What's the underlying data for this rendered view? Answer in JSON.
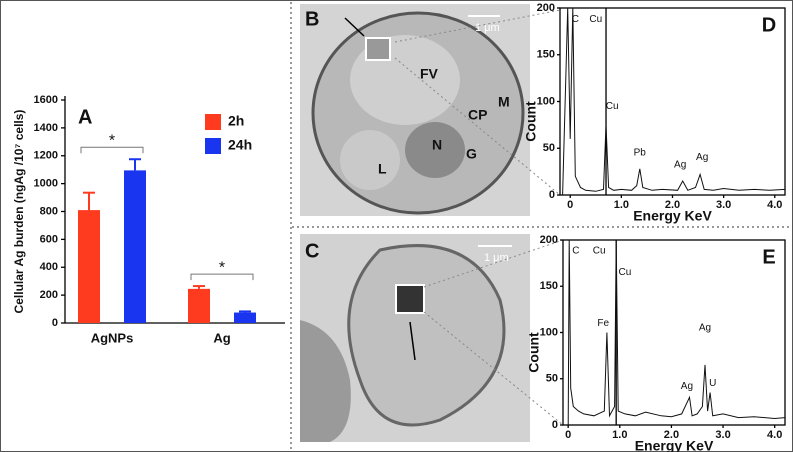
{
  "chart_data": [
    {
      "type": "bar",
      "panel": "A",
      "y_label": "Cellular Ag burden (ngAg /10⁷ cells)",
      "categories": [
        "AgNPs",
        "Ag"
      ],
      "series": [
        {
          "name": "2h",
          "color": "#ff3b1f",
          "values": [
            810,
            245
          ],
          "errors": [
            125,
            20
          ]
        },
        {
          "name": "24h",
          "color": "#1a35f0",
          "values": [
            1095,
            75
          ],
          "errors": [
            80,
            8
          ]
        }
      ],
      "significance": [
        "*",
        "*"
      ],
      "ylim": [
        0,
        1600
      ],
      "yticks": [
        0,
        200,
        400,
        600,
        800,
        1000,
        1200,
        1400,
        1600
      ],
      "legend": "upper right"
    },
    {
      "type": "line",
      "panel": "D",
      "x_label": "Energy KeV",
      "y_label": "Count",
      "xlim": [
        -0.2,
        4.2
      ],
      "xticks": [
        {
          "value": 0,
          "label": "0"
        },
        {
          "value": 1,
          "label": "1.0"
        },
        {
          "value": 2,
          "label": "2.0"
        },
        {
          "value": 3,
          "label": "3.0"
        },
        {
          "value": 4,
          "label": "4.0"
        }
      ],
      "ylim": [
        0,
        200
      ],
      "yticks": [
        0,
        50,
        100,
        150,
        200
      ],
      "marker_lines": [
        0.7
      ],
      "series": [
        {
          "color": "#111111",
          "x": [
            -0.15,
            -0.05,
            0,
            0.05,
            0.1,
            0.2,
            0.3,
            0.5,
            0.65,
            0.7,
            0.75,
            0.85,
            1.0,
            1.2,
            1.3,
            1.36,
            1.42,
            1.6,
            1.8,
            2.1,
            2.2,
            2.3,
            2.45,
            2.54,
            2.62,
            2.8,
            3.0,
            3.3,
            3.6,
            3.9,
            4.2
          ],
          "values": [
            0,
            200,
            60,
            200,
            20,
            8,
            5,
            4,
            6,
            75,
            8,
            5,
            6,
            5,
            10,
            28,
            8,
            5,
            6,
            5,
            15,
            5,
            8,
            22,
            6,
            5,
            7,
            5,
            6,
            5,
            6
          ]
        }
      ],
      "annotations": [
        {
          "text": "C",
          "x": 0.1,
          "y": 188
        },
        {
          "text": "Cu",
          "x": 0.5,
          "y": 188
        },
        {
          "text": "Cu",
          "x": 0.82,
          "y": 95
        },
        {
          "text": "Pb",
          "x": 1.36,
          "y": 45
        },
        {
          "text": "Ag",
          "x": 2.15,
          "y": 32
        },
        {
          "text": "Ag",
          "x": 2.58,
          "y": 40
        }
      ]
    },
    {
      "type": "line",
      "panel": "E",
      "x_label": "Energy KeV",
      "y_label": "Count",
      "xlim": [
        -0.1,
        4.2
      ],
      "xticks": [
        {
          "value": 0,
          "label": "0"
        },
        {
          "value": 1,
          "label": "1.0"
        },
        {
          "value": 2,
          "label": "2.0"
        },
        {
          "value": 3,
          "label": "3.0"
        },
        {
          "value": 4,
          "label": "4.0"
        }
      ],
      "ylim": [
        0,
        200
      ],
      "yticks": [
        0,
        50,
        100,
        150,
        200
      ],
      "marker_lines": [
        0.93
      ],
      "series": [
        {
          "color": "#111111",
          "x": [
            0,
            0.02,
            0.05,
            0.1,
            0.2,
            0.3,
            0.5,
            0.7,
            0.75,
            0.8,
            0.9,
            0.93,
            0.97,
            1.1,
            1.3,
            1.5,
            1.8,
            2.0,
            2.2,
            2.35,
            2.4,
            2.5,
            2.6,
            2.65,
            2.7,
            2.75,
            2.8,
            3.0,
            3.3,
            3.6,
            4.0,
            4.2
          ],
          "values": [
            0,
            200,
            40,
            20,
            15,
            12,
            10,
            15,
            100,
            10,
            20,
            200,
            15,
            12,
            10,
            14,
            10,
            9,
            12,
            30,
            10,
            12,
            20,
            65,
            15,
            35,
            10,
            12,
            8,
            9,
            7,
            8
          ]
        }
      ],
      "annotations": [
        {
          "text": "C",
          "x": 0.15,
          "y": 188
        },
        {
          "text": "Cu",
          "x": 0.6,
          "y": 188
        },
        {
          "text": "Cu",
          "x": 1.1,
          "y": 165
        },
        {
          "text": "Fe",
          "x": 0.68,
          "y": 110
        },
        {
          "text": "Ag",
          "x": 2.65,
          "y": 105
        },
        {
          "text": "Ag",
          "x": 2.3,
          "y": 42
        },
        {
          "text": "U",
          "x": 2.8,
          "y": 45
        }
      ]
    }
  ],
  "micrographs": [
    {
      "panel": "B",
      "scale": "1 μm",
      "labels": [
        "FV",
        "CP",
        "M",
        "N",
        "G",
        "L"
      ]
    },
    {
      "panel": "C",
      "scale": "1 μm"
    }
  ]
}
